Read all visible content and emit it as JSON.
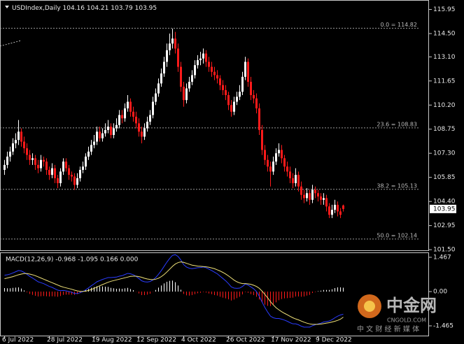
{
  "chart_data": [
    {
      "type": "candlestick",
      "title": "USDIndex,Daily",
      "up_color": "#ffffff",
      "down_color": "#ff1a1a",
      "ylim": [
        101.42,
        116.52
      ],
      "yticks": [
        115.95,
        {
          "value": 114.5,
          "label": "114.50"
        },
        {
          "value": 113.1,
          "label": "113.10"
        },
        111.65,
        {
          "value": 110.2,
          "label": "110.20"
        },
        108.75,
        {
          "value": 107.3,
          "label": "107.30"
        },
        105.85,
        {
          "value": 104.4,
          "label": "104.40"
        },
        102.95,
        {
          "value": 101.5,
          "label": "101.50"
        }
      ],
      "fib_levels": [
        {
          "label": "0.0 = 114.82",
          "value": 114.82
        },
        {
          "label": "23.6 = 108.83",
          "value": 108.83
        },
        {
          "label": "38.2 = 105.13",
          "value": 105.13
        },
        {
          "label": "50.0 = 102.14",
          "value": 102.14
        }
      ],
      "open": [
        106.3,
        106.6,
        107.1,
        107.4,
        107.9,
        108.1,
        108.6,
        108.0,
        107.6,
        107.2,
        106.9,
        107.0,
        106.6,
        106.4,
        106.9,
        106.8,
        106.3,
        106.0,
        106.4,
        105.8,
        105.5,
        106.2,
        106.8,
        106.4,
        106.0,
        105.9,
        105.4,
        105.8,
        106.3,
        106.5,
        107.1,
        107.4,
        107.8,
        108.0,
        108.6,
        108.2,
        108.5,
        108.7,
        108.9,
        108.4,
        108.8,
        109.0,
        109.6,
        109.4,
        110.0,
        110.4,
        109.8,
        109.5,
        109.1,
        108.6,
        108.3,
        108.8,
        109.2,
        109.6,
        110.4,
        110.9,
        111.5,
        112.1,
        112.8,
        113.5,
        113.9,
        114.2,
        113.6,
        112.5,
        111.3,
        110.5,
        111.2,
        111.6,
        112.0,
        112.6,
        112.9,
        113.0,
        113.3,
        112.8,
        112.5,
        112.2,
        112.0,
        111.8,
        111.4,
        111.1,
        110.8,
        110.2,
        109.8,
        110.4,
        110.7,
        111.0,
        111.9,
        112.8,
        111.6,
        110.8,
        110.6,
        110.0,
        108.7,
        107.5,
        106.9,
        106.5,
        106.2,
        106.8,
        107.3,
        107.5,
        107.0,
        106.5,
        106.2,
        105.8,
        105.5,
        106.0,
        105.3,
        104.8,
        104.6,
        104.9,
        104.5,
        105.1,
        104.9,
        104.7,
        104.5,
        104.6,
        104.1,
        103.6,
        103.9,
        104.2,
        103.8,
        104.16
      ],
      "high": [
        106.9,
        107.4,
        107.7,
        108.2,
        108.5,
        109.3,
        108.8,
        108.3,
        107.9,
        107.5,
        107.3,
        107.2,
        106.9,
        107.2,
        107.1,
        107.0,
        106.5,
        106.7,
        106.6,
        106.0,
        106.4,
        107.0,
        107.0,
        106.6,
        106.2,
        106.1,
        106.1,
        106.5,
        106.8,
        107.3,
        107.7,
        108.1,
        108.4,
        108.9,
        108.9,
        108.8,
        109.1,
        109.3,
        109.1,
        109.1,
        109.4,
        109.9,
        109.9,
        110.3,
        110.8,
        110.6,
        110.1,
        109.8,
        109.4,
        108.9,
        109.1,
        109.5,
        109.9,
        110.7,
        111.2,
        111.8,
        112.4,
        113.1,
        113.9,
        114.5,
        114.8,
        114.6,
        113.9,
        112.8,
        111.6,
        111.5,
        111.9,
        112.3,
        112.9,
        113.2,
        113.4,
        113.6,
        113.5,
        113.1,
        112.8,
        112.5,
        112.3,
        112.0,
        111.7,
        111.4,
        111.0,
        110.5,
        110.7,
        111.0,
        111.4,
        112.2,
        113.1,
        113.0,
        111.9,
        111.1,
        110.9,
        110.3,
        109.0,
        107.8,
        107.2,
        106.8,
        107.1,
        107.6,
        107.9,
        107.8,
        107.2,
        106.8,
        106.5,
        106.1,
        106.4,
        106.2,
        105.6,
        105.1,
        105.2,
        105.1,
        105.4,
        105.3,
        105.1,
        104.9,
        104.9,
        104.8,
        104.3,
        104.2,
        104.5,
        104.4,
        104.0,
        104.21
      ],
      "low": [
        106.0,
        106.4,
        106.8,
        107.2,
        107.6,
        107.8,
        107.7,
        107.3,
        106.9,
        106.6,
        106.6,
        106.3,
        106.1,
        106.2,
        106.5,
        106.0,
        105.7,
        105.8,
        105.5,
        105.2,
        105.3,
        106.0,
        106.2,
        105.7,
        105.6,
        105.1,
        105.2,
        105.6,
        106.1,
        106.3,
        106.9,
        107.2,
        107.6,
        107.8,
        108.0,
        108.0,
        108.3,
        108.5,
        108.2,
        108.2,
        108.6,
        108.8,
        109.1,
        109.2,
        109.8,
        109.5,
        109.2,
        108.8,
        108.3,
        107.9,
        108.1,
        108.6,
        109.0,
        109.4,
        110.2,
        110.7,
        111.3,
        111.9,
        112.5,
        113.2,
        113.6,
        113.3,
        112.2,
        111.0,
        110.1,
        110.3,
        111.0,
        111.4,
        111.8,
        112.4,
        112.6,
        112.7,
        112.5,
        112.2,
        111.9,
        111.7,
        111.5,
        111.1,
        110.8,
        110.5,
        109.9,
        109.5,
        109.6,
        110.2,
        110.5,
        110.8,
        111.7,
        111.3,
        110.5,
        110.3,
        109.7,
        108.4,
        107.2,
        106.6,
        106.2,
        105.3,
        106.0,
        106.6,
        107.1,
        106.7,
        106.2,
        105.9,
        105.5,
        105.2,
        105.3,
        105.0,
        104.5,
        104.3,
        104.4,
        104.2,
        104.3,
        104.6,
        104.4,
        104.2,
        104.2,
        103.8,
        103.4,
        103.4,
        103.7,
        103.5,
        103.4,
        103.79
      ],
      "close": [
        106.6,
        107.1,
        107.4,
        107.9,
        108.1,
        108.6,
        108.0,
        107.6,
        107.2,
        106.9,
        107.0,
        106.6,
        106.4,
        106.9,
        106.8,
        106.3,
        106.0,
        106.4,
        105.8,
        105.5,
        106.2,
        106.8,
        106.4,
        106.0,
        105.9,
        105.4,
        105.8,
        106.3,
        106.5,
        107.1,
        107.4,
        107.8,
        108.0,
        108.6,
        108.2,
        108.5,
        108.7,
        108.9,
        108.4,
        108.8,
        109.0,
        109.6,
        109.4,
        110.0,
        110.4,
        109.8,
        109.5,
        109.1,
        108.6,
        108.3,
        108.8,
        109.2,
        109.6,
        110.4,
        110.9,
        111.5,
        112.1,
        112.8,
        113.5,
        113.9,
        114.2,
        113.6,
        112.5,
        111.3,
        110.5,
        111.2,
        111.6,
        112.0,
        112.6,
        112.9,
        113.0,
        113.3,
        112.8,
        112.5,
        112.2,
        112.0,
        111.8,
        111.4,
        111.1,
        110.8,
        110.2,
        109.8,
        110.4,
        110.7,
        111.0,
        111.9,
        112.8,
        111.6,
        110.8,
        110.6,
        110.0,
        108.7,
        107.5,
        106.9,
        106.5,
        106.2,
        106.8,
        107.3,
        107.5,
        107.0,
        106.5,
        106.2,
        105.8,
        105.5,
        106.0,
        105.3,
        104.8,
        104.6,
        104.9,
        104.5,
        105.1,
        104.9,
        104.7,
        104.5,
        104.6,
        104.1,
        103.6,
        103.9,
        104.2,
        103.8,
        103.6,
        103.95
      ]
    },
    {
      "type": "macd",
      "title": "MACD(12,26,9) -0.968 -1.095 0.166 0.000",
      "ylim": [
        -1.883,
        1.646
      ],
      "yticks": [
        1.467,
        {
          "value": 0,
          "label": "0.00"
        },
        -1.465
      ],
      "categories": [
        "6 Jul 2022",
        null,
        null,
        null,
        null,
        null,
        null,
        null,
        null,
        null,
        null,
        null,
        null,
        null,
        null,
        null,
        "28 Jul 2022",
        null,
        null,
        null,
        null,
        null,
        null,
        null,
        null,
        null,
        null,
        null,
        null,
        null,
        null,
        null,
        "19 Aug 2022",
        null,
        null,
        null,
        null,
        null,
        null,
        null,
        null,
        null,
        null,
        null,
        null,
        null,
        null,
        null,
        "12 Sep 2022",
        null,
        null,
        null,
        null,
        null,
        null,
        null,
        null,
        null,
        null,
        null,
        null,
        null,
        null,
        null,
        "4 Oct 2022",
        null,
        null,
        null,
        null,
        null,
        null,
        null,
        null,
        null,
        null,
        null,
        null,
        null,
        null,
        null,
        "26 Oct 2022",
        null,
        null,
        null,
        null,
        null,
        null,
        null,
        null,
        null,
        null,
        null,
        null,
        null,
        null,
        null,
        "17 Nov 2022",
        null,
        null,
        null,
        null,
        null,
        null,
        null,
        null,
        null,
        null,
        null,
        null,
        null,
        null,
        null,
        "9 Dec 2022",
        null,
        null,
        null,
        null,
        null,
        null,
        null,
        null,
        null
      ],
      "histogram": {
        "up_color": "#ffffff",
        "down_color": "#ff1a1a",
        "values": [
          0.15,
          0.14,
          0.14,
          0.16,
          0.17,
          0.18,
          0.13,
          0.05,
          -0.03,
          -0.1,
          -0.14,
          -0.18,
          -0.21,
          -0.2,
          -0.19,
          -0.2,
          -0.21,
          -0.2,
          -0.21,
          -0.22,
          -0.19,
          -0.14,
          -0.13,
          -0.13,
          -0.13,
          -0.14,
          -0.11,
          -0.06,
          -0.01,
          0.06,
          0.11,
          0.16,
          0.19,
          0.23,
          0.22,
          0.22,
          0.21,
          0.2,
          0.16,
          0.14,
          0.12,
          0.13,
          0.12,
          0.14,
          0.16,
          0.11,
          0.06,
          -0.01,
          -0.08,
          -0.15,
          -0.15,
          -0.13,
          -0.09,
          -0.01,
          0.07,
          0.17,
          0.26,
          0.35,
          0.42,
          0.46,
          0.47,
          0.4,
          0.26,
          0.08,
          -0.1,
          -0.16,
          -0.17,
          -0.15,
          -0.11,
          -0.07,
          -0.05,
          -0.02,
          -0.04,
          -0.08,
          -0.11,
          -0.15,
          -0.17,
          -0.22,
          -0.26,
          -0.29,
          -0.33,
          -0.38,
          -0.34,
          -0.28,
          -0.22,
          -0.12,
          -0.02,
          -0.05,
          -0.11,
          -0.15,
          -0.22,
          -0.34,
          -0.47,
          -0.56,
          -0.61,
          -0.62,
          -0.55,
          -0.46,
          -0.37,
          -0.32,
          -0.29,
          -0.28,
          -0.27,
          -0.26,
          -0.21,
          -0.21,
          -0.22,
          -0.21,
          -0.17,
          -0.14,
          -0.06,
          -0.02,
          0.02,
          0.04,
          0.07,
          0.07,
          0.07,
          0.1,
          0.15,
          0.18,
          0.18,
          0.166
        ]
      },
      "series": [
        {
          "color": "#2a3cff",
          "values": [
            0.7,
            0.72,
            0.75,
            0.8,
            0.85,
            0.9,
            0.88,
            0.82,
            0.74,
            0.65,
            0.58,
            0.5,
            0.42,
            0.38,
            0.34,
            0.28,
            0.22,
            0.18,
            0.12,
            0.06,
            0.04,
            0.05,
            0.03,
            0.0,
            -0.03,
            -0.08,
            -0.08,
            -0.05,
            0.0,
            0.08,
            0.16,
            0.25,
            0.33,
            0.42,
            0.47,
            0.52,
            0.56,
            0.6,
            0.6,
            0.61,
            0.62,
            0.66,
            0.68,
            0.73,
            0.78,
            0.76,
            0.72,
            0.65,
            0.56,
            0.46,
            0.42,
            0.41,
            0.43,
            0.5,
            0.6,
            0.74,
            0.9,
            1.08,
            1.26,
            1.42,
            1.55,
            1.58,
            1.5,
            1.35,
            1.15,
            1.05,
            1.0,
            0.98,
            1.0,
            1.02,
            1.03,
            1.05,
            1.02,
            0.96,
            0.9,
            0.83,
            0.76,
            0.66,
            0.56,
            0.46,
            0.34,
            0.2,
            0.15,
            0.14,
            0.15,
            0.22,
            0.32,
            0.28,
            0.2,
            0.12,
            0.0,
            -0.2,
            -0.45,
            -0.68,
            -0.88,
            -1.05,
            -1.12,
            -1.15,
            -1.15,
            -1.18,
            -1.22,
            -1.27,
            -1.33,
            -1.38,
            -1.38,
            -1.42,
            -1.48,
            -1.52,
            -1.52,
            -1.52,
            -1.46,
            -1.42,
            -1.38,
            -1.35,
            -1.3,
            -1.28,
            -1.26,
            -1.2,
            -1.12,
            -1.05,
            -1.0,
            -0.968
          ]
        },
        {
          "color": "#f0e27a",
          "values": [
            0.55,
            0.58,
            0.61,
            0.64,
            0.68,
            0.72,
            0.75,
            0.77,
            0.77,
            0.75,
            0.72,
            0.68,
            0.63,
            0.58,
            0.53,
            0.48,
            0.43,
            0.38,
            0.33,
            0.28,
            0.23,
            0.19,
            0.16,
            0.13,
            0.1,
            0.06,
            0.03,
            0.01,
            0.01,
            0.02,
            0.05,
            0.09,
            0.14,
            0.19,
            0.25,
            0.3,
            0.35,
            0.4,
            0.44,
            0.47,
            0.5,
            0.53,
            0.56,
            0.59,
            0.62,
            0.65,
            0.66,
            0.66,
            0.64,
            0.61,
            0.57,
            0.54,
            0.52,
            0.51,
            0.53,
            0.57,
            0.64,
            0.73,
            0.84,
            0.96,
            1.08,
            1.18,
            1.24,
            1.27,
            1.25,
            1.21,
            1.17,
            1.13,
            1.11,
            1.09,
            1.08,
            1.07,
            1.06,
            1.04,
            1.01,
            0.98,
            0.93,
            0.88,
            0.82,
            0.75,
            0.67,
            0.58,
            0.49,
            0.42,
            0.37,
            0.34,
            0.34,
            0.33,
            0.31,
            0.27,
            0.22,
            0.14,
            0.02,
            -0.12,
            -0.27,
            -0.43,
            -0.57,
            -0.69,
            -0.78,
            -0.86,
            -0.93,
            -0.99,
            -1.06,
            -1.12,
            -1.17,
            -1.21,
            -1.26,
            -1.31,
            -1.35,
            -1.38,
            -1.4,
            -1.4,
            -1.4,
            -1.39,
            -1.37,
            -1.35,
            -1.33,
            -1.3,
            -1.27,
            -1.23,
            -1.18,
            -1.095
          ]
        }
      ]
    }
  ],
  "watermark": {
    "name": "中金网",
    "site": "CNGOLD.COM",
    "slogan": "中 文 财 经 新 媒 体"
  }
}
